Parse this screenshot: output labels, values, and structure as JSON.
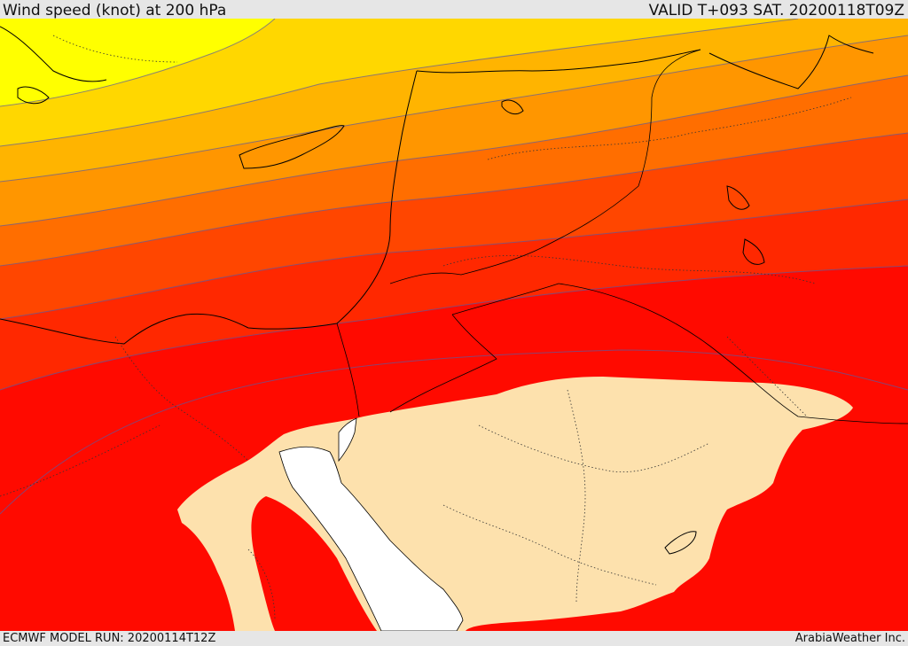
{
  "header": {
    "title": "Wind speed (knot) at 200 hPa",
    "valid_time": "VALID T+093 SAT. 20200118T09Z"
  },
  "footer": {
    "model_run": "ECMWF MODEL RUN: 20200114T12Z",
    "credit": "ArabiaWeather Inc."
  },
  "map": {
    "fill_colors": [
      "#ffff00",
      "#ffd700",
      "#ffb400",
      "#ff9600",
      "#ff6e00",
      "#ff4600",
      "#ff2800",
      "#ff0a00",
      "#fde1ad",
      "#ffffff"
    ],
    "coastline_color": "#000000",
    "contour_color": "#5a5aa0"
  }
}
